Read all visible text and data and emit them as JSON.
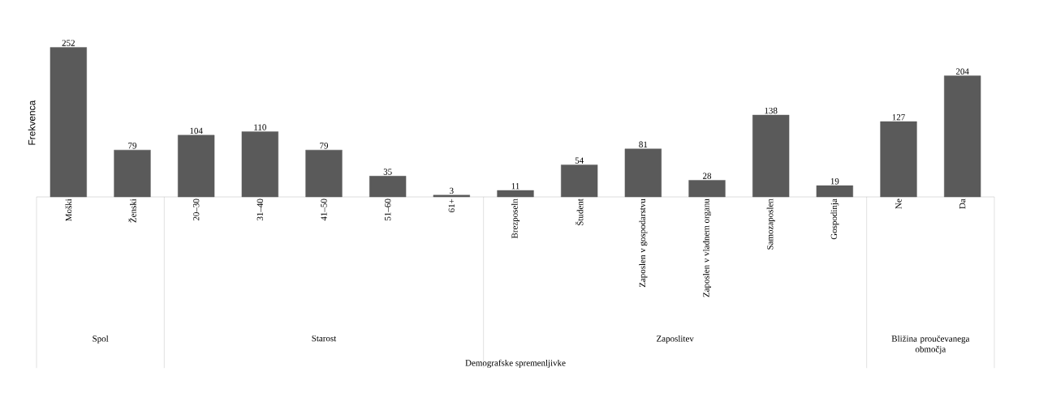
{
  "chart_data": {
    "type": "bar",
    "ylabel": "Frekvenca",
    "categories": [
      "Moški",
      "Ženski",
      "20–30",
      "31–40",
      "41–50",
      "51–60",
      "61+",
      "Brezposeln",
      "Študent",
      "Zaposlen v gospodarstvu",
      "Zaposlen v vladnem organu",
      "Samozaposlen",
      "Gospodinja",
      "Ne",
      "Da"
    ],
    "values": [
      252,
      79,
      104,
      110,
      79,
      35,
      3,
      11,
      54,
      81,
      28,
      138,
      19,
      127,
      204
    ],
    "color": "#5a5a5a",
    "tick_labels": "x",
    "data_labels": true,
    "annotations": [
      "Spol",
      "Starost",
      "Zaposlitev",
      "Bližina proučevanega območja",
      "Demografske spremenljivke"
    ]
  }
}
